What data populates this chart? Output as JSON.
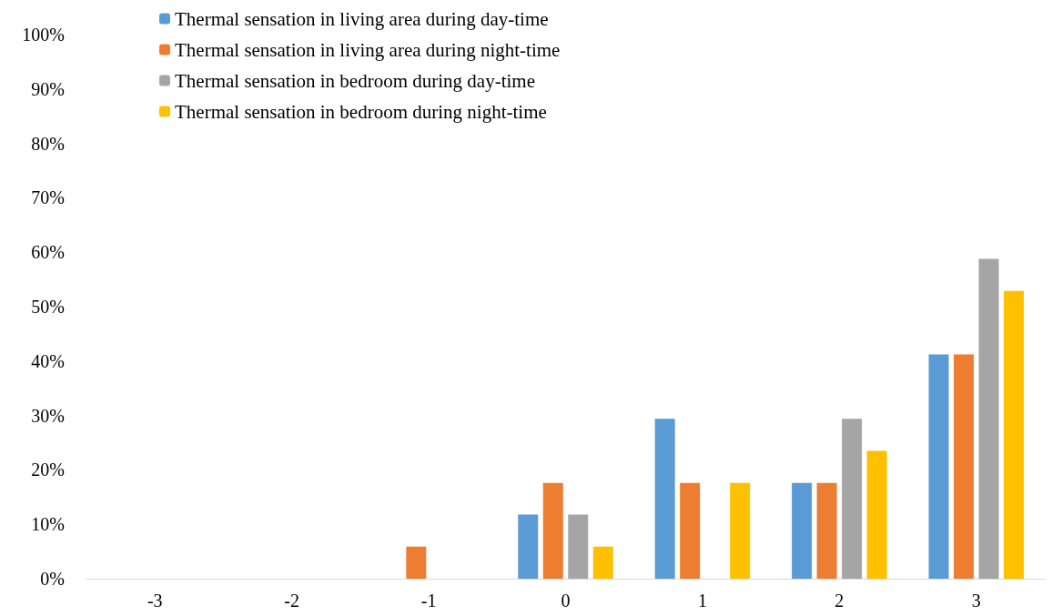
{
  "chart_data": {
    "type": "bar",
    "categories": [
      "-3",
      "-2",
      "-1",
      "0",
      "1",
      "2",
      "3"
    ],
    "series": [
      {
        "name": "Thermal sensation in living area during day-time",
        "color": "#5b9bd5",
        "values": [
          0,
          0,
          0,
          11.8,
          29.4,
          17.6,
          41.2
        ]
      },
      {
        "name": "Thermal sensation in living area during night-time",
        "color": "#ed7d31",
        "values": [
          0,
          0,
          5.9,
          17.6,
          17.6,
          17.6,
          41.2
        ]
      },
      {
        "name": "Thermal sensation in bedroom during day-time",
        "color": "#a5a5a5",
        "values": [
          0,
          0,
          0,
          11.8,
          0,
          29.4,
          58.8
        ]
      },
      {
        "name": "Thermal sensation in bedroom during night-time",
        "color": "#ffc000",
        "values": [
          0,
          0,
          0,
          5.9,
          17.6,
          23.5,
          52.9
        ]
      }
    ],
    "ylim": [
      0,
      100
    ],
    "yticks": [
      {
        "value": 0,
        "label": "0%"
      },
      {
        "value": 10,
        "label": "10%"
      },
      {
        "value": 20,
        "label": "20%"
      },
      {
        "value": 30,
        "label": "30%"
      },
      {
        "value": 40,
        "label": "40%"
      },
      {
        "value": 50,
        "label": "50%"
      },
      {
        "value": 60,
        "label": "60%"
      },
      {
        "value": 70,
        "label": "70%"
      },
      {
        "value": 80,
        "label": "80%"
      },
      {
        "value": 90,
        "label": "90%"
      },
      {
        "value": 100,
        "label": "100%"
      }
    ],
    "grid": false,
    "legend": "top"
  }
}
